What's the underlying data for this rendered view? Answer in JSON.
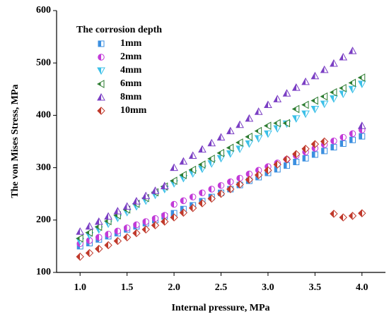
{
  "chart_data": {
    "type": "scatter",
    "xlabel": "Internal pressure, MPa",
    "ylabel": "The von Mises Stress, MPa",
    "legend_title": "The corrosion depth",
    "legend": "upper left",
    "x": [
      1,
      1.1,
      1.2,
      1.3,
      1.4,
      1.5,
      1.6,
      1.7,
      1.8,
      1.9,
      2,
      2.1,
      2.2,
      2.3,
      2.4,
      2.5,
      2.6,
      2.7,
      2.8,
      2.9,
      3,
      3.1,
      3.2,
      3.3,
      3.4,
      3.5,
      3.6,
      3.7,
      3.8,
      3.9,
      4
    ],
    "xlim": [
      0.75,
      4.25
    ],
    "xticks": [
      {
        "value": 1,
        "label": "1.0"
      },
      1.5,
      {
        "value": 2,
        "label": "2.0"
      },
      2.5,
      {
        "value": 3,
        "label": "3.0"
      },
      3.5,
      {
        "value": 4,
        "label": "4.0"
      }
    ],
    "ylim": [
      100,
      600
    ],
    "yticks": [
      100,
      200,
      300,
      400,
      500,
      600
    ],
    "series": [
      {
        "name": "1mm",
        "color": "#3b8fe0",
        "marker": "square",
        "values": [
          150,
          156,
          163,
          169,
          175,
          182,
          188,
          194,
          200,
          207,
          213,
          221,
          228,
          236,
          244,
          252,
          259,
          267,
          275,
          282,
          290,
          297,
          304,
          311,
          318,
          325,
          332,
          339,
          346,
          353,
          360
        ]
      },
      {
        "name": "2mm",
        "color": "#c23ad8",
        "marker": "circle",
        "values": [
          155,
          161,
          167,
          173,
          179,
          185,
          191,
          197,
          203,
          209,
          230,
          237,
          244,
          252,
          259,
          266,
          273,
          280,
          288,
          295,
          302,
          309,
          316,
          323,
          330,
          337,
          344,
          351,
          358,
          365,
          372
        ]
      },
      {
        "name": "4mm",
        "color": "#3cc0e8",
        "marker": "triangle-down",
        "values": [
          160,
          171,
          182,
          193,
          204,
          215,
          226,
          237,
          248,
          259,
          270,
          280,
          289,
          298,
          308,
          318,
          327,
          336,
          346,
          356,
          365,
          375,
          384,
          394,
          403,
          412,
          422,
          432,
          441,
          450,
          460
        ]
      },
      {
        "name": "6mm",
        "color": "#2e7d32",
        "marker": "triangle-left",
        "values": [
          165,
          176,
          187,
          198,
          209,
          220,
          231,
          242,
          253,
          264,
          275,
          286,
          296,
          306,
          317,
          328,
          338,
          348,
          359,
          370,
          380,
          385,
          385,
          412,
          420,
          428,
          436,
          444,
          452,
          462,
          472
        ]
      },
      {
        "name": "8mm",
        "color": "#7b3fc4",
        "marker": "triangle-up",
        "values": [
          178,
          188,
          197,
          207,
          217,
          226,
          236,
          246,
          256,
          265,
          300,
          312,
          323,
          335,
          347,
          358,
          370,
          382,
          394,
          407,
          420,
          431,
          442,
          453,
          464,
          475,
          487,
          499,
          511,
          523,
          380
        ]
      },
      {
        "name": "10mm",
        "color": "#c0392b",
        "marker": "diamond",
        "values": [
          130,
          137,
          145,
          152,
          160,
          167,
          175,
          182,
          190,
          197,
          205,
          214,
          223,
          232,
          241,
          250,
          259,
          268,
          277,
          286,
          295,
          306,
          316,
          326,
          336,
          345,
          350,
          212,
          205,
          208,
          213
        ]
      }
    ]
  }
}
